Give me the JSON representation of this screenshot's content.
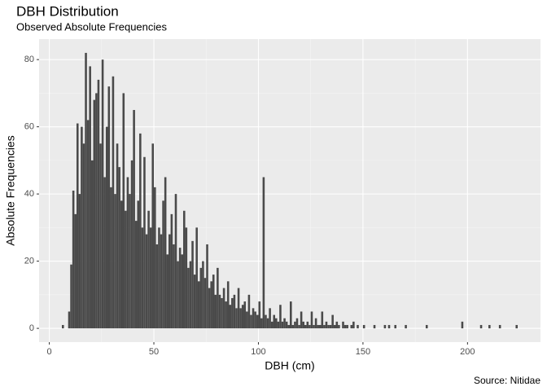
{
  "chart_data": {
    "type": "histogram",
    "title": "DBH Distribution",
    "subtitle": "Observed Absolute Frequencies",
    "x_label": "DBH (cm)",
    "y_label": "Absolute Frequencies",
    "caption": "Source: Nitidae",
    "color": "#4a4a4a",
    "grid": true,
    "bins": [
      6,
      7,
      8,
      9,
      10,
      11,
      12,
      13,
      14,
      15,
      16,
      17,
      18,
      19,
      20,
      21,
      22,
      23,
      24,
      25,
      26,
      27,
      28,
      29,
      30,
      31,
      32,
      33,
      34,
      35,
      36,
      37,
      38,
      39,
      40,
      41,
      42,
      43,
      44,
      45,
      46,
      47,
      48,
      49,
      50,
      51,
      52,
      53,
      54,
      55,
      56,
      57,
      58,
      59,
      60,
      61,
      62,
      63,
      64,
      65,
      66,
      67,
      68,
      69,
      70,
      71,
      72,
      73,
      74,
      75,
      76,
      77,
      78,
      79,
      80,
      81,
      82,
      83,
      84,
      85,
      86,
      87,
      88,
      89,
      90,
      91,
      92,
      93,
      94,
      95,
      96,
      97,
      98,
      99,
      100,
      101,
      102,
      103,
      104,
      105,
      106,
      107,
      108,
      109,
      110,
      111,
      112,
      113,
      114,
      115,
      116,
      117,
      118,
      119,
      120,
      121,
      122,
      123,
      124,
      125,
      126,
      127,
      128,
      129,
      130,
      131,
      132,
      133,
      134,
      135,
      136,
      137,
      138,
      139,
      140,
      141,
      142,
      143,
      144,
      145,
      146,
      147,
      148,
      149,
      150,
      151,
      152,
      153,
      154,
      155,
      156,
      157,
      158,
      159,
      160,
      161,
      162,
      163,
      164,
      165,
      166,
      167,
      168,
      169,
      170,
      171,
      172,
      173,
      174,
      175,
      176,
      177,
      178,
      179,
      180,
      181,
      182,
      183,
      184,
      185,
      186,
      187,
      188,
      189,
      190,
      191,
      192,
      193,
      194,
      195,
      196,
      197,
      198,
      199,
      200,
      201,
      202,
      203,
      204,
      205,
      206,
      207,
      208,
      209,
      210,
      211,
      212,
      213,
      214,
      215,
      216,
      217,
      218,
      219,
      220,
      221,
      222,
      223,
      224
    ],
    "values": [
      1,
      0,
      0,
      5,
      19,
      41,
      34,
      61,
      40,
      60,
      55,
      82,
      62,
      78,
      50,
      68,
      70,
      74,
      55,
      80,
      45,
      60,
      72,
      42,
      75,
      40,
      55,
      48,
      38,
      70,
      35,
      45,
      40,
      50,
      65,
      32,
      38,
      58,
      30,
      51,
      28,
      35,
      30,
      55,
      42,
      25,
      30,
      28,
      38,
      45,
      22,
      28,
      34,
      25,
      40,
      20,
      24,
      22,
      35,
      30,
      18,
      20,
      26,
      16,
      30,
      14,
      18,
      20,
      15,
      25,
      12,
      14,
      16,
      10,
      18,
      10,
      9,
      12,
      8,
      14,
      7,
      9,
      10,
      6,
      12,
      6,
      7,
      8,
      5,
      10,
      4,
      6,
      5,
      4,
      8,
      3,
      45,
      4,
      3,
      6,
      2,
      4,
      3,
      2,
      7,
      2,
      3,
      2,
      1,
      8,
      1,
      2,
      3,
      1,
      5,
      2,
      1,
      2,
      1,
      5,
      1,
      3,
      1,
      1,
      5,
      1,
      2,
      1,
      1,
      4,
      1,
      2,
      1,
      0,
      2,
      1,
      1,
      0,
      1,
      2,
      0,
      1,
      0,
      0,
      1,
      0,
      0,
      0,
      0,
      1,
      0,
      0,
      0,
      0,
      1,
      0,
      1,
      0,
      0,
      1,
      0,
      0,
      0,
      0,
      1,
      0,
      0,
      0,
      0,
      0,
      0,
      0,
      0,
      0,
      1,
      0,
      0,
      0,
      0,
      0,
      0,
      0,
      0,
      0,
      0,
      0,
      0,
      0,
      0,
      0,
      0,
      2,
      0,
      0,
      0,
      0,
      0,
      0,
      0,
      0,
      1,
      0,
      0,
      0,
      1,
      0,
      0,
      0,
      0,
      1,
      0,
      0,
      0,
      0,
      0,
      0,
      0,
      1
    ],
    "xlim": [
      -4.9,
      234.9
    ],
    "xticks": [
      0,
      50,
      100,
      150,
      200
    ],
    "ylim": [
      -4.1,
      86.1
    ],
    "yticks": [
      0,
      20,
      40,
      60,
      80
    ]
  }
}
